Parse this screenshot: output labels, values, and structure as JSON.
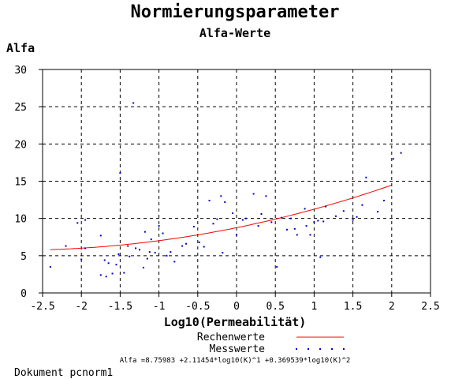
{
  "chart_data": {
    "type": "scatter",
    "title": "Normierungsparameter",
    "subtitle": "Alfa-Werte",
    "ylabel": "Alfa",
    "xlabel": "Log10(Permeabilität)",
    "xlim": [
      -2.5,
      2.5
    ],
    "ylim": [
      0,
      30
    ],
    "x_ticks": [
      "-2.5",
      "-2",
      "-1.5",
      "-1",
      "-0.5",
      "0",
      "0.5",
      "1",
      "1.5",
      "2",
      "2.5"
    ],
    "y_ticks": [
      "0",
      "5",
      "10",
      "15",
      "20",
      "25",
      "30"
    ],
    "grid": true,
    "legend_position": "bottom-right",
    "colors": {
      "curve": "#ff0000",
      "points": "#0000cc",
      "grid": "#000000"
    },
    "series": [
      {
        "name": "Rechenwerte",
        "kind": "line",
        "coefficients": [
          8.75983,
          2.11454,
          0.369539
        ],
        "x_range": [
          -2.4,
          2.0
        ]
      },
      {
        "name": "Messwerte",
        "kind": "points",
        "points": [
          [
            -2.4,
            3.5
          ],
          [
            -2.2,
            6.3
          ],
          [
            -2.05,
            9.4
          ],
          [
            -2.0,
            4.5
          ],
          [
            -1.95,
            9.8
          ],
          [
            -1.95,
            6.0
          ],
          [
            -1.75,
            7.7
          ],
          [
            -1.75,
            2.4
          ],
          [
            -1.7,
            4.4
          ],
          [
            -1.68,
            2.2
          ],
          [
            -1.65,
            4.0
          ],
          [
            -1.6,
            2.6
          ],
          [
            -1.55,
            3.8
          ],
          [
            -1.52,
            5.2
          ],
          [
            -1.5,
            16.1
          ],
          [
            -1.45,
            2.7
          ],
          [
            -1.4,
            6.3
          ],
          [
            -1.38,
            4.9
          ],
          [
            -1.33,
            25.5
          ],
          [
            -1.3,
            6.0
          ],
          [
            -1.25,
            5.8
          ],
          [
            -1.2,
            3.4
          ],
          [
            -1.18,
            8.2
          ],
          [
            -1.15,
            4.6
          ],
          [
            -1.12,
            5.5
          ],
          [
            -1.1,
            7.2
          ],
          [
            -1.05,
            5.4
          ],
          [
            -1.0,
            9.0
          ],
          [
            -0.95,
            8.0
          ],
          [
            -0.9,
            5.0
          ],
          [
            -0.85,
            5.5
          ],
          [
            -0.8,
            4.2
          ],
          [
            -0.7,
            6.3
          ],
          [
            -0.65,
            6.6
          ],
          [
            -0.55,
            8.9
          ],
          [
            -0.48,
            6.8
          ],
          [
            -0.42,
            6.2
          ],
          [
            -0.35,
            12.4
          ],
          [
            -0.3,
            9.3
          ],
          [
            -0.25,
            9.9
          ],
          [
            -0.2,
            13.0
          ],
          [
            -0.18,
            5.4
          ],
          [
            -0.15,
            12.2
          ],
          [
            -0.05,
            10.7
          ],
          [
            0.0,
            7.8
          ],
          [
            0.08,
            9.8
          ],
          [
            0.12,
            10.0
          ],
          [
            0.22,
            13.3
          ],
          [
            0.28,
            9.0
          ],
          [
            0.32,
            10.6
          ],
          [
            0.38,
            13.0
          ],
          [
            0.45,
            9.5
          ],
          [
            0.52,
            3.5
          ],
          [
            0.58,
            10.1
          ],
          [
            0.65,
            8.5
          ],
          [
            0.7,
            10.0
          ],
          [
            0.75,
            8.6
          ],
          [
            0.78,
            7.8
          ],
          [
            0.88,
            11.3
          ],
          [
            0.9,
            9.0
          ],
          [
            0.95,
            7.8
          ],
          [
            1.0,
            9.5
          ],
          [
            1.05,
            9.7
          ],
          [
            1.08,
            4.8
          ],
          [
            1.12,
            9.6
          ],
          [
            1.15,
            11.6
          ],
          [
            1.28,
            10.3
          ],
          [
            1.38,
            11.0
          ],
          [
            1.5,
            9.8
          ],
          [
            1.55,
            10.2
          ],
          [
            1.62,
            11.8
          ],
          [
            1.67,
            15.5
          ],
          [
            1.82,
            10.9
          ],
          [
            1.9,
            12.4
          ],
          [
            2.02,
            18.0
          ],
          [
            2.12,
            18.8
          ]
        ]
      }
    ]
  },
  "legend": {
    "line_label": "Rechenwerte",
    "points_label": "Messwerte"
  },
  "formula": "Alfa =8.75983 +2.11454*log10(K)^1 +0.369539*log10(K)^2",
  "footer": "Dokument pcnorm1"
}
